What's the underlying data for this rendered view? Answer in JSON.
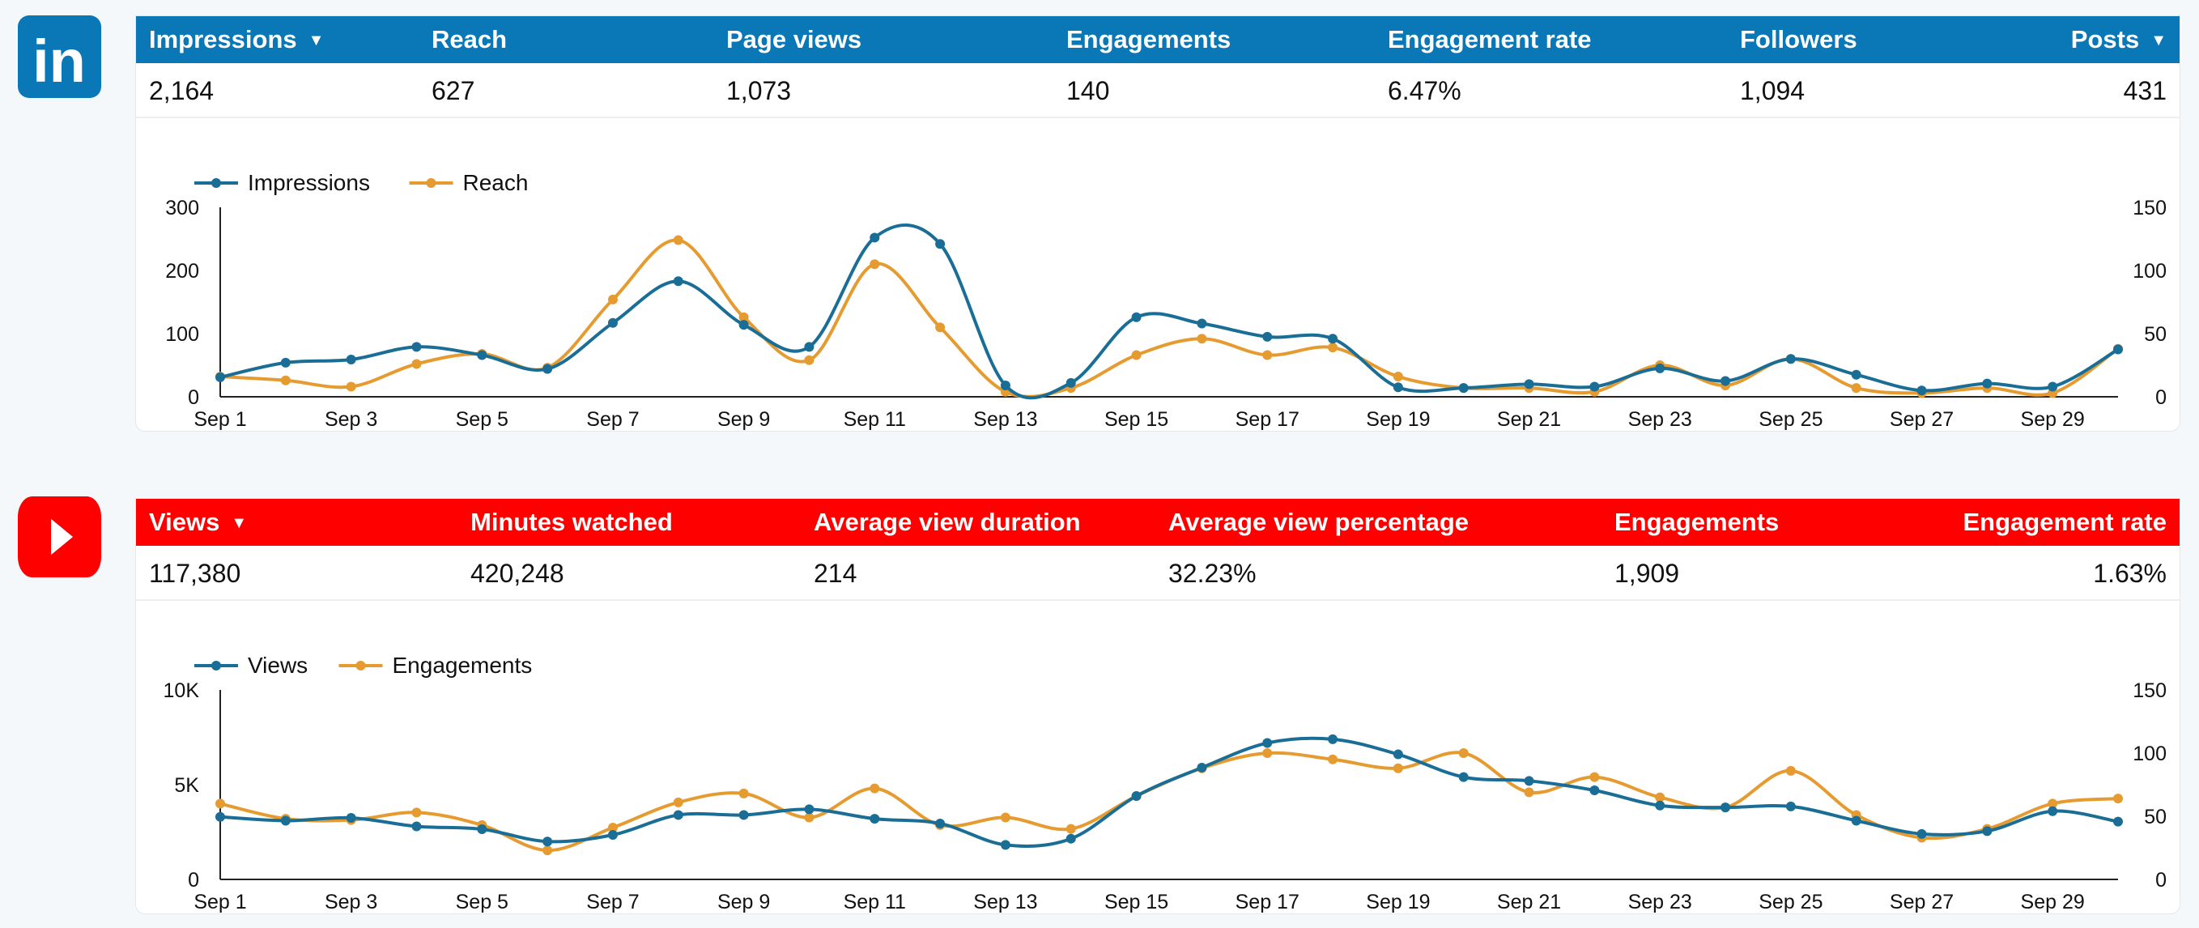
{
  "colors": {
    "linkedin": "#0a77b7",
    "youtube": "#fe0000",
    "series_primary": "#1a6e96",
    "series_secondary": "#e69b30"
  },
  "linkedin": {
    "logo_icon": "linkedin-logo-icon",
    "logo_text": "in",
    "metrics": [
      {
        "label": "Impressions",
        "value": "2,164",
        "dropdown": true
      },
      {
        "label": "Reach",
        "value": "627"
      },
      {
        "label": "Page views",
        "value": "1,073"
      },
      {
        "label": "Engagements",
        "value": "140"
      },
      {
        "label": "Engagement rate",
        "value": "6.47%"
      },
      {
        "label": "Followers",
        "value": "1,094"
      },
      {
        "label": "Posts",
        "value": "431",
        "dropdown": true
      }
    ]
  },
  "youtube": {
    "logo_icon": "youtube-logo-icon",
    "metrics": [
      {
        "label": "Views",
        "value": "117,380",
        "dropdown": true
      },
      {
        "label": "Minutes watched",
        "value": "420,248"
      },
      {
        "label": "Average view duration",
        "value": "214"
      },
      {
        "label": "Average view percentage",
        "value": "32.23%"
      },
      {
        "label": "Engagements",
        "value": "1,909"
      },
      {
        "label": "Engagement rate",
        "value": "1.63%"
      }
    ]
  },
  "chart_data": [
    {
      "type": "line",
      "categories": [
        "Sep 1",
        "Sep 2",
        "Sep 3",
        "Sep 4",
        "Sep 5",
        "Sep 6",
        "Sep 7",
        "Sep 8",
        "Sep 9",
        "Sep 10",
        "Sep 11",
        "Sep 12",
        "Sep 13",
        "Sep 14",
        "Sep 15",
        "Sep 16",
        "Sep 17",
        "Sep 18",
        "Sep 19",
        "Sep 20",
        "Sep 21",
        "Sep 22",
        "Sep 23",
        "Sep 24",
        "Sep 25",
        "Sep 26",
        "Sep 27",
        "Sep 28",
        "Sep 29",
        "Sep 30"
      ],
      "x_tick_labels": [
        "Sep 1",
        "Sep 3",
        "Sep 5",
        "Sep 7",
        "Sep 9",
        "Sep 11",
        "Sep 13",
        "Sep 15",
        "Sep 17",
        "Sep 19",
        "Sep 21",
        "Sep 23",
        "Sep 25",
        "Sep 27",
        "Sep 29"
      ],
      "series": [
        {
          "name": "Impressions",
          "axis": "left",
          "values": [
            31,
            54,
            59,
            79,
            66,
            44,
            117,
            183,
            114,
            79,
            252,
            242,
            18,
            22,
            126,
            116,
            95,
            92,
            15,
            14,
            20,
            16,
            45,
            25,
            60,
            35,
            10,
            21,
            16,
            75
          ]
        },
        {
          "name": "Reach",
          "axis": "right",
          "values": [
            16,
            13,
            8,
            26,
            34,
            23,
            77,
            124,
            63,
            29,
            105,
            55,
            4,
            7,
            33,
            46,
            33,
            39,
            16,
            7,
            7,
            4,
            25,
            9,
            30,
            7,
            3,
            7,
            3,
            38
          ]
        }
      ],
      "ylim_left": [
        0,
        300
      ],
      "yticks_left": [
        "0",
        "100",
        "200",
        "300"
      ],
      "ylim_right": [
        0,
        150
      ],
      "yticks_right": [
        "0",
        "50",
        "100",
        "150"
      ],
      "legend": "top-left",
      "grid": false
    },
    {
      "type": "line",
      "categories": [
        "Sep 1",
        "Sep 2",
        "Sep 3",
        "Sep 4",
        "Sep 5",
        "Sep 6",
        "Sep 7",
        "Sep 8",
        "Sep 9",
        "Sep 10",
        "Sep 11",
        "Sep 12",
        "Sep 13",
        "Sep 14",
        "Sep 15",
        "Sep 16",
        "Sep 17",
        "Sep 18",
        "Sep 19",
        "Sep 20",
        "Sep 21",
        "Sep 22",
        "Sep 23",
        "Sep 24",
        "Sep 25",
        "Sep 26",
        "Sep 27",
        "Sep 28",
        "Sep 29",
        "Sep 30"
      ],
      "x_tick_labels": [
        "Sep 1",
        "Sep 3",
        "Sep 5",
        "Sep 7",
        "Sep 9",
        "Sep 11",
        "Sep 13",
        "Sep 15",
        "Sep 17",
        "Sep 19",
        "Sep 21",
        "Sep 23",
        "Sep 25",
        "Sep 27",
        "Sep 29"
      ],
      "series": [
        {
          "name": "Views",
          "axis": "left",
          "values": [
            3300,
            3100,
            3250,
            2800,
            2650,
            2000,
            2350,
            3400,
            3400,
            3700,
            3200,
            2950,
            1820,
            2150,
            4400,
            5900,
            7200,
            7400,
            6600,
            5400,
            5200,
            4700,
            3900,
            3800,
            3850,
            3100,
            2400,
            2550,
            3600,
            3050
          ]
        },
        {
          "name": "Engagements",
          "axis": "right",
          "values": [
            60,
            48,
            47,
            53,
            43,
            23,
            41,
            61,
            68,
            49,
            72,
            43,
            49,
            40,
            66,
            88,
            100,
            95,
            88,
            100,
            69,
            81,
            65,
            57,
            86,
            51,
            33,
            40,
            60,
            64
          ]
        }
      ],
      "ylim_left": [
        0,
        10000
      ],
      "yticks_left": [
        "0",
        "5K",
        "10K"
      ],
      "ylim_right": [
        0,
        150
      ],
      "yticks_right": [
        "0",
        "50",
        "100",
        "150"
      ],
      "legend": "top-left",
      "grid": false
    }
  ]
}
